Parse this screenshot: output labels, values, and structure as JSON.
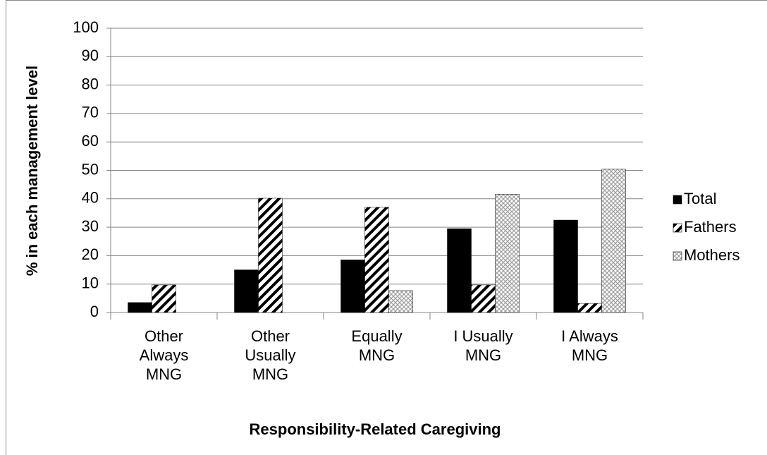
{
  "chart_data": {
    "type": "bar",
    "x_label": "Responsibility-Related Caregiving",
    "y_label": "% in each management level",
    "categories": [
      "Other Always MNG",
      "Other Usually MNG",
      "Equally MNG",
      "I Usually MNG",
      "I Always MNG"
    ],
    "series": [
      {
        "name": "Total",
        "color": "#000000",
        "values": [
          3.5,
          15,
          18.5,
          29.5,
          32.5
        ]
      },
      {
        "name": "Fathers",
        "color": "#000000",
        "values": [
          9.7,
          40.2,
          37,
          9.7,
          3.2
        ]
      },
      {
        "name": "Mothers",
        "color": "#a0a0a0",
        "values": [
          0,
          0,
          7.7,
          41.6,
          50.4
        ]
      }
    ],
    "ylim": [
      0,
      100
    ],
    "yticks": [
      0,
      10,
      20,
      30,
      40,
      50,
      60,
      70,
      80,
      90,
      100
    ],
    "grid": true,
    "legend": "right"
  }
}
